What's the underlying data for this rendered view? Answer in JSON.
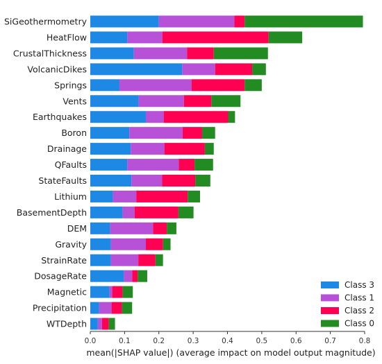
{
  "chart_data": {
    "type": "bar",
    "orientation": "horizontal",
    "stacked": true,
    "categories": [
      "SiGeothermometry",
      "HeatFlow",
      "CrustalThickness",
      "VolcanicDikes",
      "Springs",
      "Vents",
      "Earthquakes",
      "Boron",
      "Drainage",
      "QFaults",
      "StateFaults",
      "Lithium",
      "BasementDepth",
      "DEM",
      "Gravity",
      "StrainRate",
      "DosageRate",
      "Magnetic",
      "Precipitation",
      "WTDepth"
    ],
    "series": [
      {
        "name": "Class 3",
        "color": "#1e88e5",
        "values": [
          0.2,
          0.108,
          0.127,
          0.268,
          0.085,
          0.141,
          0.162,
          0.114,
          0.118,
          0.108,
          0.12,
          0.066,
          0.094,
          0.058,
          0.06,
          0.06,
          0.098,
          0.056,
          0.026,
          0.022
        ]
      },
      {
        "name": "Class 1",
        "color": "#b651d8",
        "values": [
          0.22,
          0.102,
          0.155,
          0.096,
          0.21,
          0.132,
          0.052,
          0.155,
          0.098,
          0.15,
          0.089,
          0.068,
          0.035,
          0.125,
          0.102,
          0.08,
          0.024,
          0.008,
          0.036,
          0.012
        ]
      },
      {
        "name": "Class 2",
        "color": "#ff0052",
        "values": [
          0.03,
          0.31,
          0.078,
          0.108,
          0.155,
          0.08,
          0.188,
          0.057,
          0.118,
          0.046,
          0.097,
          0.15,
          0.128,
          0.04,
          0.05,
          0.05,
          0.016,
          0.03,
          0.03,
          0.02
        ]
      },
      {
        "name": "Class 0",
        "color": "#228b22",
        "values": [
          0.345,
          0.098,
          0.158,
          0.04,
          0.05,
          0.085,
          0.02,
          0.038,
          0.026,
          0.054,
          0.044,
          0.036,
          0.044,
          0.028,
          0.022,
          0.022,
          0.028,
          0.03,
          0.03,
          0.018
        ]
      }
    ],
    "class_2_dark_color": "#8b1a3a",
    "xlabel": "mean(|SHAP value|) (average impact on model output magnitude)",
    "xlim": [
      0.0,
      0.8
    ],
    "xticks": [
      "0.0",
      "0.1",
      "0.2",
      "0.3",
      "0.4",
      "0.5",
      "0.6",
      "0.7",
      "0.8"
    ],
    "legend": [
      "Class 3",
      "Class 1",
      "Class 2",
      "Class 0"
    ],
    "legend_position": "bottom-right",
    "grid": false
  }
}
